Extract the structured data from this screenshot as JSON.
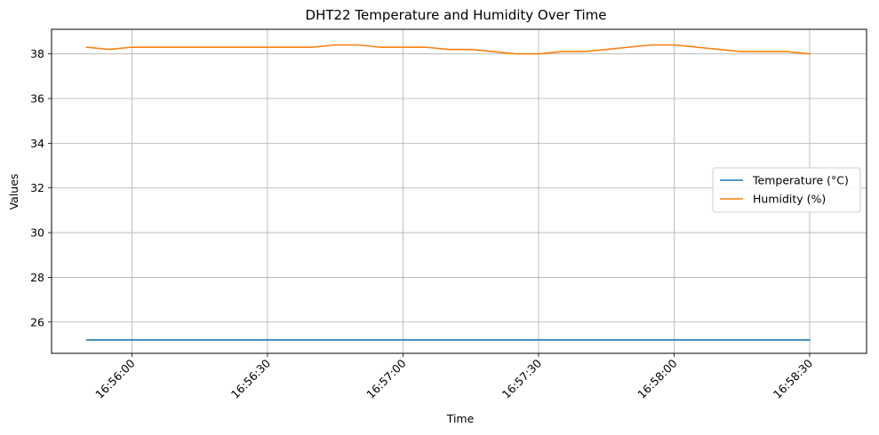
{
  "chart_data": {
    "type": "line",
    "title": "DHT22 Temperature and Humidity Over Time",
    "xlabel": "Time",
    "ylabel": "Values",
    "x_ticks": [
      "16:56:00",
      "16:56:30",
      "16:57:00",
      "16:57:30",
      "16:58:00",
      "16:58:30"
    ],
    "x_tick_seconds": [
      0,
      30,
      60,
      90,
      120,
      150
    ],
    "xlim_seconds": [
      -17.8,
      162.6
    ],
    "ylim": [
      24.6,
      39.1
    ],
    "y_ticks": [
      26,
      28,
      30,
      32,
      34,
      36,
      38
    ],
    "grid": true,
    "legend_position": "center-right",
    "colors": {
      "temperature": "#1f77b4",
      "humidity": "#ff7f0e",
      "grid": "#b0b0b0"
    },
    "series": [
      {
        "name": "Temperature (°C)",
        "x_seconds": [
          -10,
          150
        ],
        "values": [
          25.2,
          25.2
        ]
      },
      {
        "name": "Humidity (%)",
        "x_seconds": [
          -10,
          -5,
          0,
          5,
          10,
          15,
          20,
          25,
          30,
          35,
          40,
          45,
          50,
          55,
          60,
          65,
          70,
          75,
          80,
          85,
          90,
          95,
          100,
          105,
          110,
          115,
          120,
          125,
          130,
          135,
          140,
          145,
          150
        ],
        "values": [
          38.3,
          38.2,
          38.3,
          38.3,
          38.3,
          38.3,
          38.3,
          38.3,
          38.3,
          38.3,
          38.3,
          38.4,
          38.4,
          38.3,
          38.3,
          38.3,
          38.2,
          38.2,
          38.1,
          38.0,
          38.0,
          38.1,
          38.1,
          38.2,
          38.3,
          38.4,
          38.4,
          38.3,
          38.2,
          38.1,
          38.1,
          38.1,
          38.0
        ]
      }
    ]
  }
}
